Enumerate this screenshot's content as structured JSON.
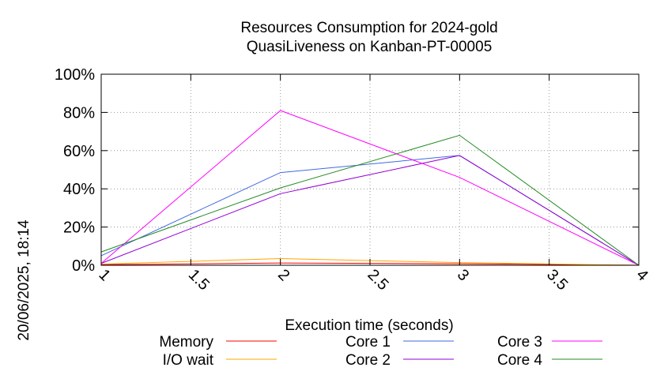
{
  "chart_data": {
    "type": "line",
    "title": "Resources Consumption for 2024-gold",
    "subtitle": "QuasiLiveness on Kanban-PT-00005",
    "xlabel": "Execution time (seconds)",
    "ylabel": "",
    "side_label": "20/06/2025, 18:14",
    "xlim": [
      1,
      4
    ],
    "ylim": [
      0,
      100
    ],
    "x_ticks": [
      1,
      1.5,
      2,
      2.5,
      3,
      3.5,
      4
    ],
    "x_tick_labels": [
      "1",
      "1.5",
      "2",
      "2.5",
      "3",
      "3.5",
      "4"
    ],
    "y_ticks": [
      0,
      20,
      40,
      60,
      80,
      100
    ],
    "y_tick_labels": [
      "0%",
      "20%",
      "40%",
      "60%",
      "80%",
      "100%"
    ],
    "grid": true,
    "legend_position": "bottom",
    "series": [
      {
        "name": "Memory",
        "color": "#ff0000",
        "x": [
          1,
          2,
          3,
          4
        ],
        "values": [
          0.3,
          1.2,
          0.8,
          0
        ]
      },
      {
        "name": "I/O wait",
        "color": "#ffa500",
        "x": [
          1,
          2,
          3,
          4
        ],
        "values": [
          0.6,
          3.5,
          1.4,
          0
        ]
      },
      {
        "name": "Core 1",
        "color": "#4169e1",
        "x": [
          1,
          2,
          3,
          4
        ],
        "values": [
          5,
          48.5,
          57.5,
          0
        ]
      },
      {
        "name": "Core 2",
        "color": "#9400d3",
        "x": [
          1,
          2,
          3,
          4
        ],
        "values": [
          1,
          37.5,
          57.5,
          0
        ]
      },
      {
        "name": "Core 3",
        "color": "#ff00ff",
        "x": [
          1,
          2,
          3,
          4
        ],
        "values": [
          1,
          81,
          46,
          0
        ]
      },
      {
        "name": "Core 4",
        "color": "#228b22",
        "x": [
          1,
          2,
          3,
          4
        ],
        "values": [
          7,
          40.5,
          68,
          0
        ]
      }
    ]
  }
}
